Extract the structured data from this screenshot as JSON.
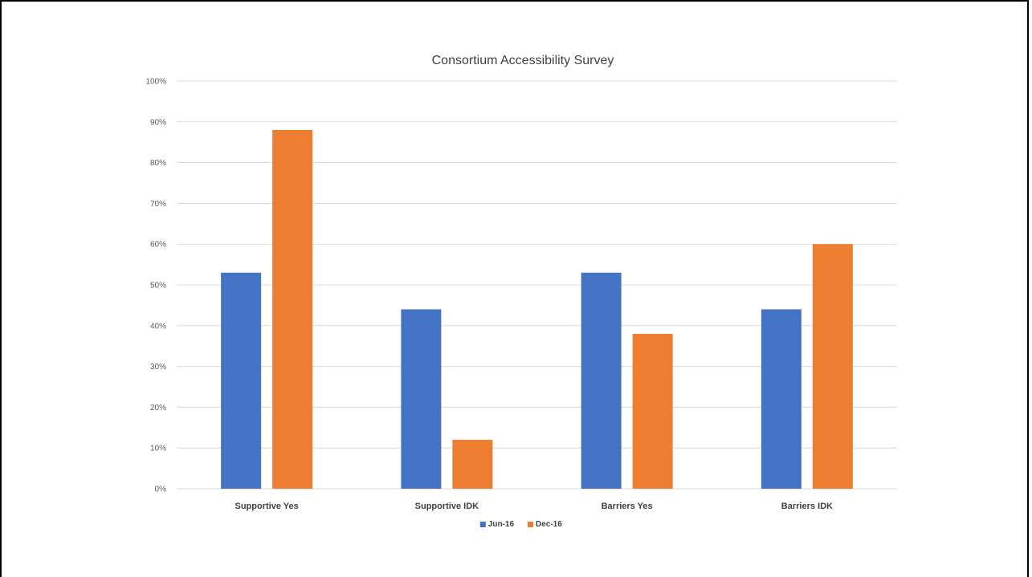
{
  "chart_data": {
    "type": "bar",
    "title": "Consortium Accessibility Survey",
    "xlabel": "",
    "ylabel": "",
    "categories": [
      "Supportive Yes",
      "Supportive IDK",
      "Barriers Yes",
      "Barriers IDK"
    ],
    "series": [
      {
        "name": "Jun-16",
        "values": [
          53,
          44,
          53,
          44
        ],
        "color": "#4472C4"
      },
      {
        "name": "Dec-16",
        "values": [
          88,
          12,
          38,
          60
        ],
        "color": "#ED7D31"
      }
    ],
    "ylim": [
      0,
      100
    ],
    "y_ticks": [
      "0%",
      "10%",
      "20%",
      "30%",
      "40%",
      "50%",
      "60%",
      "70%",
      "80%",
      "90%",
      "100%"
    ],
    "y_tick_values": [
      0,
      10,
      20,
      30,
      40,
      50,
      60,
      70,
      80,
      90,
      100
    ],
    "grid": true,
    "legend_position": "bottom"
  }
}
